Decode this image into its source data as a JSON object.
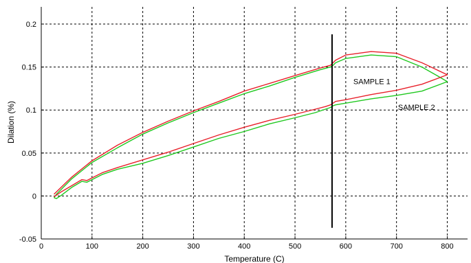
{
  "chart_data": {
    "type": "line",
    "title": "",
    "xlabel": "Temperature (C)",
    "ylabel": "Dilation (%)",
    "xlim": [
      0,
      840
    ],
    "ylim": [
      -0.05,
      0.22
    ],
    "xticks": [
      0,
      100,
      200,
      300,
      400,
      500,
      600,
      700,
      800
    ],
    "yticks": [
      -0.05,
      0,
      0.05,
      0.1,
      0.15,
      0.2
    ],
    "xtick_labels": [
      "0",
      "100",
      "200",
      "300",
      "400",
      "500",
      "600",
      "700",
      "800"
    ],
    "ytick_labels": [
      "-0.05",
      "0",
      "0.05",
      "0.1",
      "0.15",
      "0.2"
    ],
    "grid": true,
    "colors": {
      "sample1": "#e8202a",
      "sample2": "#1ec81e",
      "marker": "#000000"
    },
    "vertical_marker": {
      "x": 573,
      "y_range": [
        -0.037,
        0.188
      ]
    },
    "annotations": [
      {
        "text": "SAMPLE 1",
        "x": 615,
        "y": 0.13
      },
      {
        "text": "SAMPLE 2",
        "x": 703,
        "y": 0.1
      }
    ],
    "series": [
      {
        "name": "SAMPLE 1",
        "x": [
          25,
          40,
          60,
          80,
          90,
          100,
          120,
          150,
          200,
          250,
          300,
          350,
          400,
          450,
          500,
          540,
          560,
          570,
          575,
          580,
          600,
          650,
          700,
          750,
          800,
          750,
          700,
          650,
          600,
          580,
          575,
          570,
          550,
          500,
          450,
          400,
          350,
          300,
          250,
          200,
          150,
          100,
          60,
          25
        ],
        "y": [
          -0.001,
          0.005,
          0.012,
          0.019,
          0.018,
          0.021,
          0.027,
          0.033,
          0.042,
          0.051,
          0.061,
          0.071,
          0.08,
          0.088,
          0.095,
          0.101,
          0.104,
          0.106,
          0.108,
          0.11,
          0.112,
          0.118,
          0.123,
          0.13,
          0.141,
          0.155,
          0.166,
          0.168,
          0.164,
          0.158,
          0.155,
          0.152,
          0.149,
          0.14,
          0.131,
          0.122,
          0.11,
          0.099,
          0.087,
          0.074,
          0.059,
          0.041,
          0.022,
          0.002
        ]
      },
      {
        "name": "SAMPLE 2",
        "x": [
          25,
          30,
          40,
          60,
          80,
          90,
          100,
          120,
          150,
          200,
          250,
          300,
          350,
          400,
          450,
          500,
          540,
          560,
          570,
          575,
          580,
          600,
          650,
          700,
          750,
          800,
          780,
          750,
          700,
          650,
          600,
          580,
          575,
          570,
          550,
          500,
          450,
          400,
          350,
          300,
          250,
          200,
          150,
          100,
          60,
          30,
          25
        ],
        "y": [
          -0.002,
          -0.003,
          0.001,
          0.01,
          0.017,
          0.016,
          0.019,
          0.025,
          0.031,
          0.038,
          0.047,
          0.057,
          0.067,
          0.075,
          0.084,
          0.091,
          0.097,
          0.101,
          0.103,
          0.105,
          0.106,
          0.108,
          0.113,
          0.117,
          0.122,
          0.133,
          0.14,
          0.15,
          0.162,
          0.164,
          0.16,
          0.155,
          0.152,
          0.15,
          0.147,
          0.138,
          0.128,
          0.119,
          0.108,
          0.097,
          0.085,
          0.072,
          0.056,
          0.039,
          0.02,
          0.002,
          -0.002
        ]
      }
    ]
  }
}
